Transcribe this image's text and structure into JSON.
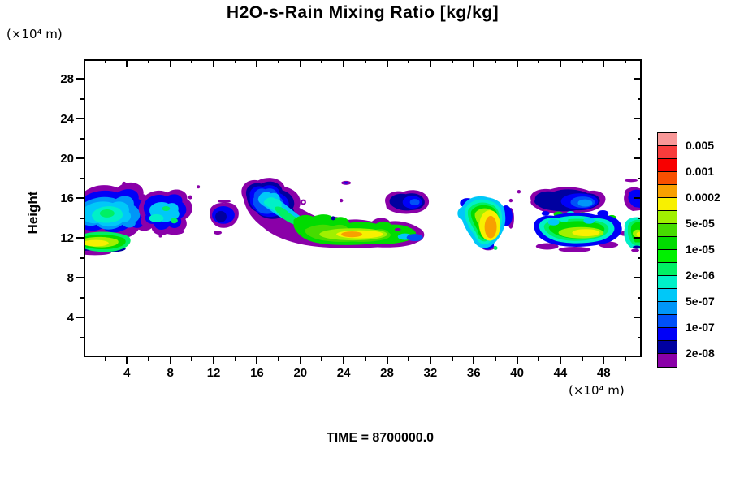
{
  "page": {
    "background": "#ffffff"
  },
  "chart_data": {
    "type": "filled-contour",
    "title": "H2O-s-Rain Mixing Ratio [kg/kg]",
    "time_label": "TIME = 8700000.0",
    "x_axis": {
      "unit": "(×10⁴ m)",
      "range": [
        0,
        51.5
      ],
      "major_ticks": [
        4,
        8,
        12,
        16,
        20,
        24,
        28,
        32,
        36,
        40,
        44,
        48
      ],
      "minor_ticks": [
        2,
        6,
        10,
        14,
        18,
        22,
        26,
        30,
        34,
        38,
        42,
        46,
        50
      ]
    },
    "y_axis": {
      "label": "Height",
      "unit": "(×10⁴ m)",
      "range": [
        0,
        30
      ],
      "major_ticks": [
        4,
        8,
        12,
        16,
        20,
        24,
        28
      ],
      "minor_ticks": [
        2,
        6,
        10,
        14,
        18,
        22,
        26
      ]
    },
    "contour_levels": [
      2e-08,
      5e-08,
      1e-07,
      2e-07,
      5e-07,
      1e-06,
      2e-06,
      5e-06,
      1e-05,
      2e-05,
      5e-05,
      0.0001,
      0.0002,
      0.0005,
      0.001,
      0.002,
      0.005
    ],
    "palette": {
      "pink": "#F89898",
      "salmon": "#F83C3C",
      "red": "#F80000",
      "orangered": "#F85000",
      "orange": "#F8A000",
      "yellow": "#F8F000",
      "ygreen": "#A0F000",
      "green2": "#46DC00",
      "green": "#00DC00",
      "green_b": "#00F000",
      "spring": "#00F064",
      "turq": "#00F0C8",
      "sky": "#00C8F8",
      "dodger": "#0096F8",
      "medblue": "#0050F8",
      "blue": "#0000F8",
      "navy": "#0000A0",
      "purple": "#8A00A8",
      "white": "#FFFFFF"
    },
    "colorbar": {
      "colors_top_to_bottom": [
        "pink",
        "salmon",
        "red",
        "orangered",
        "orange",
        "yellow",
        "ygreen",
        "green2",
        "green",
        "green_b",
        "spring",
        "turq",
        "sky",
        "dodger",
        "medblue",
        "blue",
        "navy",
        "purple"
      ],
      "labels_top_to_bottom": [
        "0.005",
        "0.001",
        "0.0002",
        "5e-05",
        "1e-05",
        "2e-06",
        "5e-07",
        "1e-07",
        "2e-08"
      ]
    },
    "regions": [
      {
        "x_range": [
          0,
          4.5
        ],
        "height_range": [
          11,
          17
        ],
        "peak_band": "1e-04 to 2e-04",
        "note": "cloud cluster at left edge; blue-cyan aloft with yellow rain core near height 12"
      },
      {
        "x_range": [
          5,
          9.5
        ],
        "height_range": [
          12,
          16.5
        ],
        "peak_band": "5e-06",
        "note": "small blue cluster with cyan-green patches"
      },
      {
        "x_range": [
          11.5,
          14.5
        ],
        "height_range": [
          13,
          15.5
        ],
        "peak_band": "5e-08",
        "note": "small dark blue blob"
      },
      {
        "x_range": [
          14,
          31.5
        ],
        "height_range": [
          11.5,
          17.8
        ],
        "peak_band": "2e-04",
        "note": "anvil sloping down-right into long rain band; orange core near x=25, height 12"
      },
      {
        "x_range": [
          28,
          32
        ],
        "height_range": [
          14.8,
          16.5
        ],
        "peak_band": "2e-07",
        "note": "detached blue patch aloft"
      },
      {
        "x_range": [
          34.5,
          40
        ],
        "height_range": [
          11,
          16
        ],
        "peak_band": "2e-04",
        "note": "strong isolated cell with vertical orange core near x=37.5"
      },
      {
        "x_range": [
          41,
          48
        ],
        "height_range": [
          14.3,
          16.7
        ],
        "peak_band": "5e-08",
        "note": "dark navy anvil patch aloft"
      },
      {
        "x_range": [
          42,
          49.5
        ],
        "height_range": [
          10.5,
          14
        ],
        "peak_band": "1e-04",
        "note": "broad green rain band with yellow core"
      },
      {
        "x_range": [
          50,
          51.5
        ],
        "height_range": [
          14.5,
          16.5
        ],
        "peak_band": "1e-07",
        "note": "partial blue blob clipped at right edge"
      },
      {
        "x_range": [
          50,
          51.5
        ],
        "height_range": [
          10.5,
          13.5
        ],
        "peak_band": "1e-04",
        "note": "partial green blob with yellow spot clipped at right edge"
      }
    ]
  }
}
